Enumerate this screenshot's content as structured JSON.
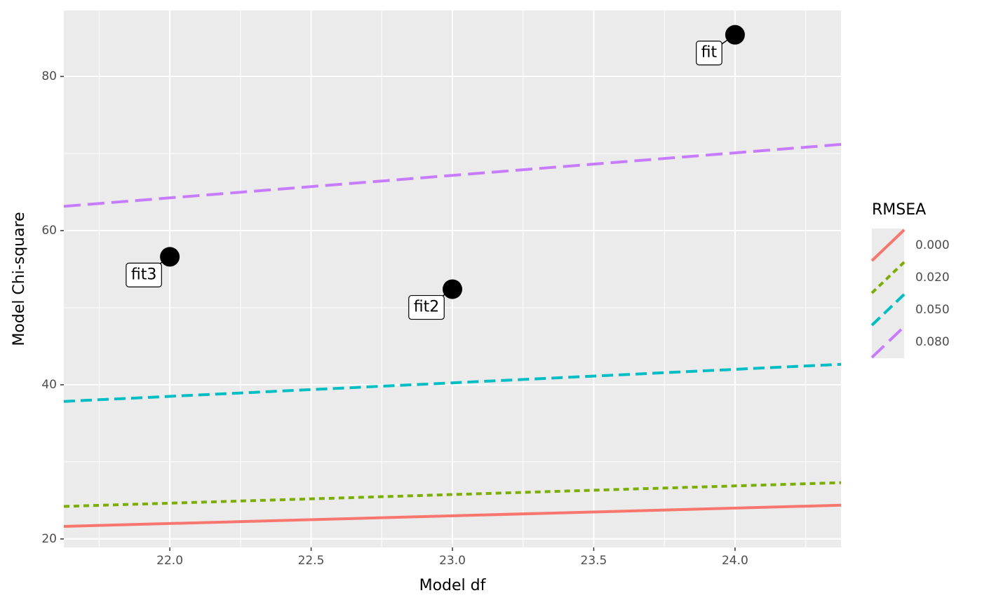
{
  "chart_data": {
    "type": "line",
    "x_label": "Model df",
    "y_label": "Model Chi-square",
    "legend_title": "RMSEA",
    "legend_position": "right",
    "grid": true,
    "xlim": [
      21.625,
      24.375
    ],
    "ylim": [
      18.9,
      88.55
    ],
    "xticks": [
      {
        "value": 22,
        "label": "22.0"
      },
      {
        "value": 22.5,
        "label": "22.5"
      },
      {
        "value": 23,
        "label": "23.0"
      },
      {
        "value": 23.5,
        "label": "23.5"
      },
      {
        "value": 24,
        "label": "24.0"
      }
    ],
    "xminor": [
      21.75,
      22.25,
      22.75,
      23.25,
      23.75,
      24.25
    ],
    "yticks": [
      20,
      40,
      60,
      80
    ],
    "yminor": [
      30,
      50,
      70
    ],
    "x": [
      21.625,
      24.375
    ],
    "series": [
      {
        "name": "0.000",
        "color": "#f8766d",
        "linetype": "solid",
        "values": [
          21.625,
          24.375
        ]
      },
      {
        "name": "0.020",
        "color": "#7cae00",
        "linetype": "dotted",
        "values": [
          24.22,
          27.3
        ]
      },
      {
        "name": "0.050",
        "color": "#00bfc4",
        "linetype": "dashed",
        "values": [
          37.84,
          42.66
        ]
      },
      {
        "name": "0.080",
        "color": "#c77cff",
        "linetype": "longdash",
        "values": [
          63.15,
          71.18
        ]
      }
    ],
    "points": {
      "labels": [
        "fit",
        "fit2",
        "fit3"
      ],
      "x": [
        24,
        23,
        22
      ],
      "values": [
        85.4,
        52.4,
        56.6
      ],
      "color": "#000000"
    }
  }
}
